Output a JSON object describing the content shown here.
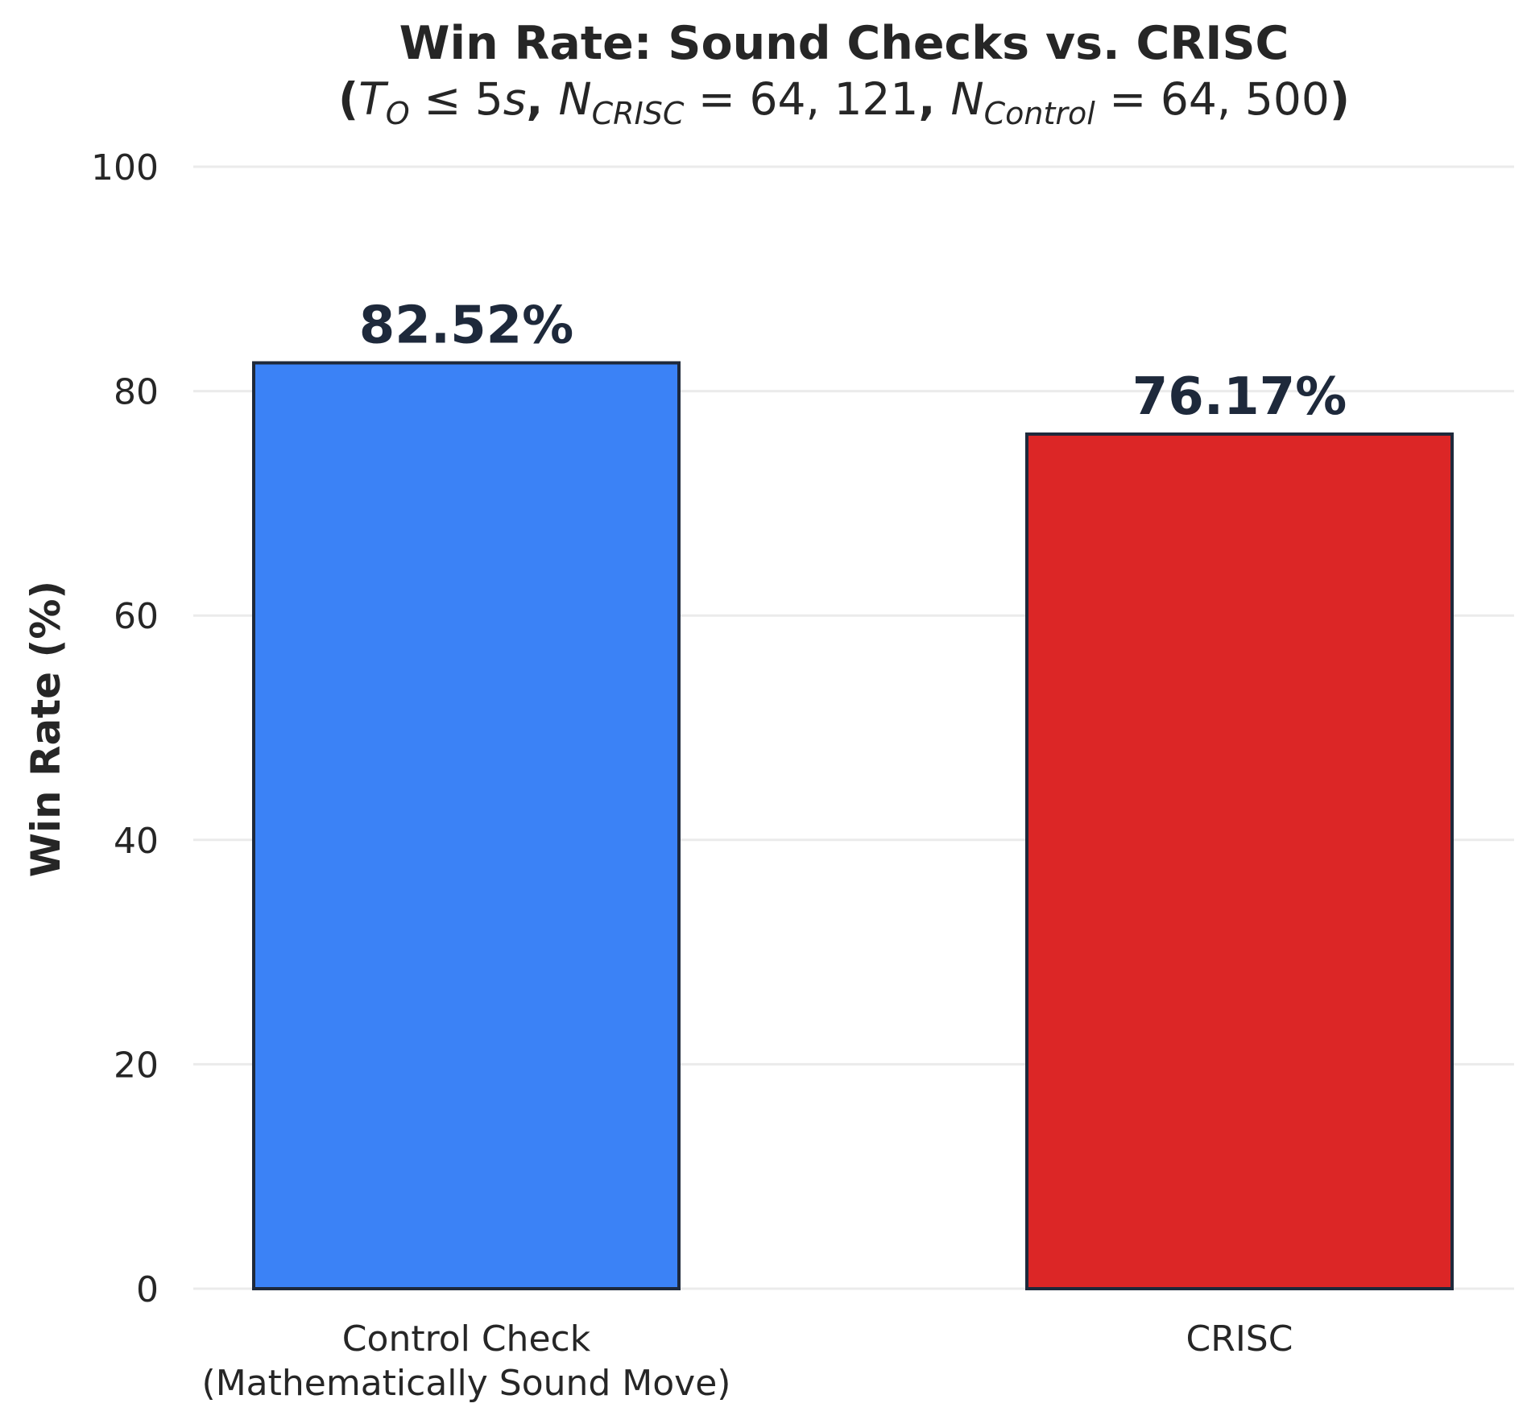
{
  "chart_data": {
    "type": "bar",
    "title": "Win Rate: Sound Checks vs. CRISC",
    "subtitle": {
      "parts": [
        {
          "text": "(",
          "style": "bold"
        },
        {
          "text": "T",
          "style": "italic"
        },
        {
          "text": "O",
          "style": "italic-sub"
        },
        {
          "text": " ≤ 5",
          "style": "normal"
        },
        {
          "text": "s",
          "style": "italic"
        },
        {
          "text": ", ",
          "style": "bold"
        },
        {
          "text": "N",
          "style": "italic"
        },
        {
          "text": "CRISC",
          "style": "italic-sub"
        },
        {
          "text": " = 64, 121",
          "style": "normal"
        },
        {
          "text": ", ",
          "style": "bold"
        },
        {
          "text": "N",
          "style": "italic"
        },
        {
          "text": "Control",
          "style": "italic-sub"
        },
        {
          "text": " = 64, 500",
          "style": "normal"
        },
        {
          "text": ")",
          "style": "bold"
        }
      ]
    },
    "xlabel": "",
    "ylabel": "Win Rate (%)",
    "ylim": [
      0,
      100
    ],
    "yticks": [
      0,
      20,
      40,
      60,
      80,
      100
    ],
    "grid": true,
    "categories": [
      [
        "Control Check",
        "(Mathematically Sound Move)"
      ],
      [
        "CRISC"
      ]
    ],
    "values": [
      82.52,
      76.17
    ],
    "value_labels": [
      "82.52%",
      "76.17%"
    ],
    "colors": [
      "#3b82f6",
      "#dc2626"
    ],
    "edge_color": "#1e293b",
    "label_color": "#1e293b",
    "text_color": "#262626",
    "grid_color": "#ebebeb"
  }
}
